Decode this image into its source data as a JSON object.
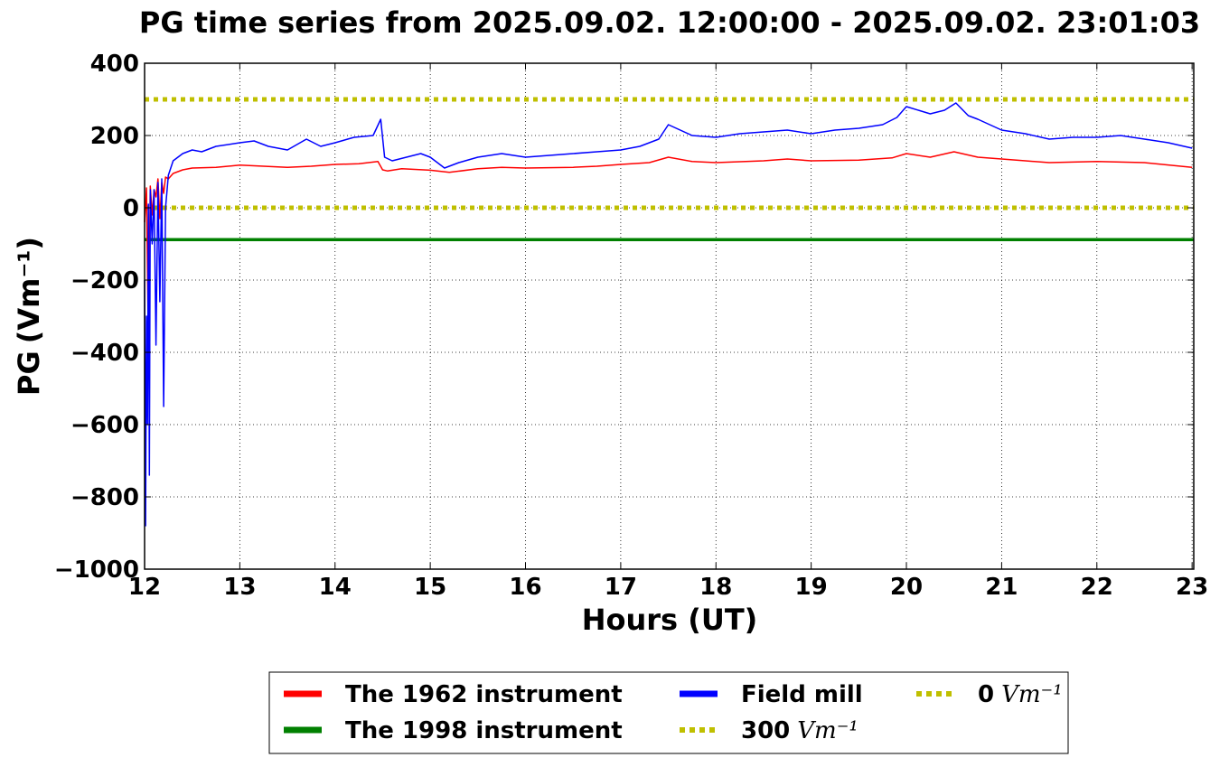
{
  "chart_data": {
    "type": "line",
    "title": "PG time series from 2025.09.02. 12:00:00 - 2025.09.02. 23:01:03",
    "xlabel": "Hours (UT)",
    "ylabel": "PG",
    "ylabel_unit": "(Vm⁻¹)",
    "xlim": [
      12,
      23.0175
    ],
    "ylim": [
      -1000,
      400
    ],
    "grid": true,
    "legend": "bottom-center",
    "x_ticks": [
      "12",
      "13",
      "14",
      "15",
      "16",
      "17",
      "18",
      "19",
      "20",
      "21",
      "22",
      "23"
    ],
    "y_ticks": [
      "400",
      "200",
      "0",
      "−200",
      "−400",
      "−600",
      "−800",
      "−1000"
    ],
    "legend_items": [
      {
        "label": "The 1962 instrument",
        "color": "#ff0000",
        "style": "solid"
      },
      {
        "label": "Field mill",
        "color": "#0000ff",
        "style": "solid"
      },
      {
        "label": "0",
        "unit": "Vm⁻¹",
        "color": "#bfbf00",
        "style": "dotted"
      },
      {
        "label": "The 1998 instrument",
        "color": "#008000",
        "style": "solid"
      },
      {
        "label": "300",
        "unit": "Vm⁻¹",
        "color": "#bfbf00",
        "style": "dotted"
      }
    ],
    "series": [
      {
        "name": "The 1962 instrument",
        "color": "#ff0000",
        "x": [
          12.0,
          12.02,
          12.04,
          12.06,
          12.08,
          12.1,
          12.12,
          12.14,
          12.16,
          12.18,
          12.2,
          12.22,
          12.25,
          12.3,
          12.4,
          12.5,
          12.75,
          13.0,
          13.25,
          13.5,
          13.75,
          14.0,
          14.25,
          14.45,
          14.5,
          14.55,
          14.7,
          15.0,
          15.2,
          15.5,
          15.75,
          16.0,
          16.5,
          16.75,
          17.0,
          17.3,
          17.5,
          17.75,
          18.0,
          18.5,
          18.75,
          19.0,
          19.5,
          19.85,
          20.0,
          20.25,
          20.5,
          20.75,
          21.0,
          21.25,
          21.5,
          22.0,
          22.5,
          23.0
        ],
        "y": [
          -40,
          55,
          -380,
          60,
          -20,
          50,
          30,
          80,
          -30,
          70,
          40,
          85,
          80,
          95,
          105,
          110,
          112,
          118,
          115,
          112,
          115,
          120,
          122,
          128,
          105,
          102,
          108,
          104,
          98,
          108,
          112,
          110,
          112,
          115,
          120,
          125,
          140,
          128,
          125,
          130,
          135,
          130,
          132,
          138,
          150,
          140,
          155,
          140,
          135,
          130,
          125,
          128,
          125,
          112
        ]
      },
      {
        "name": "Field mill",
        "color": "#0000ff",
        "x": [
          12.0,
          12.01,
          12.02,
          12.03,
          12.04,
          12.05,
          12.06,
          12.08,
          12.1,
          12.12,
          12.14,
          12.16,
          12.18,
          12.2,
          12.22,
          12.25,
          12.3,
          12.35,
          12.4,
          12.5,
          12.6,
          12.75,
          13.0,
          13.15,
          13.3,
          13.5,
          13.7,
          13.85,
          14.0,
          14.2,
          14.4,
          14.48,
          14.52,
          14.6,
          14.75,
          14.9,
          15.0,
          15.15,
          15.3,
          15.5,
          15.75,
          16.0,
          16.25,
          16.5,
          16.75,
          17.0,
          17.2,
          17.4,
          17.5,
          17.75,
          18.0,
          18.25,
          18.5,
          18.75,
          19.0,
          19.25,
          19.5,
          19.75,
          19.9,
          20.0,
          20.25,
          20.4,
          20.52,
          20.65,
          20.75,
          21.0,
          21.25,
          21.5,
          21.75,
          22.0,
          22.25,
          22.5,
          22.75,
          23.0
        ],
        "y": [
          -200,
          -880,
          -300,
          -600,
          10,
          -740,
          50,
          -100,
          50,
          -380,
          70,
          -260,
          80,
          -550,
          0,
          90,
          130,
          140,
          150,
          160,
          155,
          170,
          180,
          185,
          170,
          160,
          190,
          170,
          180,
          195,
          200,
          245,
          140,
          130,
          140,
          150,
          140,
          110,
          125,
          140,
          150,
          140,
          145,
          150,
          155,
          160,
          170,
          190,
          230,
          200,
          195,
          205,
          210,
          215,
          205,
          215,
          220,
          230,
          250,
          280,
          260,
          270,
          290,
          255,
          245,
          215,
          205,
          190,
          195,
          195,
          200,
          190,
          180,
          165
        ]
      },
      {
        "name": "The 1998 instrument",
        "color": "#008000",
        "x": [
          12.0,
          23.0175
        ],
        "y": [
          -88,
          -88
        ]
      },
      {
        "name": "300 Vm⁻¹",
        "color": "#bfbf00",
        "x": [
          12.0,
          23.0175
        ],
        "y": [
          300,
          300
        ]
      },
      {
        "name": "0 Vm⁻¹",
        "color": "#bfbf00",
        "x": [
          12.0,
          23.0175
        ],
        "y": [
          0,
          0
        ]
      }
    ]
  }
}
